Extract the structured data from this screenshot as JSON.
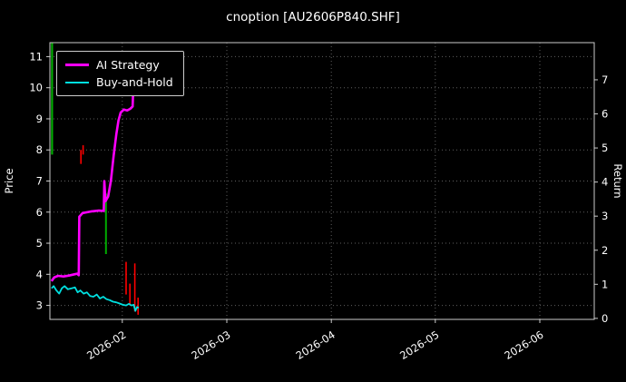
{
  "chart_data": {
    "type": "line",
    "title": "cnoption [AU2606P840.SHF]",
    "bg": "#000000",
    "text_color": "#ffffff",
    "grid_color": "#5f5f5f",
    "spine_color": "#cccccc",
    "left_axis": {
      "label": "Price",
      "ticks": [
        3,
        4,
        5,
        6,
        7,
        8,
        9,
        10,
        11
      ],
      "range": [
        2.55,
        11.45
      ]
    },
    "right_axis": {
      "label": "Return",
      "ticks": [
        0,
        1,
        2,
        3,
        4,
        5,
        6,
        7
      ],
      "range": [
        -0.03,
        8.09
      ]
    },
    "x_axis": {
      "tick_labels": [
        "2026-02",
        "2026-03",
        "2026-04",
        "2026-05",
        "2026-06"
      ],
      "tick_positions": [
        0.133,
        0.325,
        0.517,
        0.708,
        0.9
      ],
      "range": [
        0,
        1
      ]
    },
    "legend": [
      {
        "label": "AI Strategy",
        "color": "#ff00ff",
        "thickness": 3
      },
      {
        "label": "Buy-and-Hold",
        "color": "#00e0e0",
        "thickness": 2
      }
    ],
    "series": [
      {
        "name": "AI Strategy",
        "color": "#ff00ff",
        "width": 2.6,
        "points": [
          [
            0.003,
            3.78
          ],
          [
            0.008,
            3.9
          ],
          [
            0.015,
            3.95
          ],
          [
            0.025,
            3.93
          ],
          [
            0.035,
            3.96
          ],
          [
            0.045,
            4.0
          ],
          [
            0.05,
            4.02
          ],
          [
            0.053,
            3.97
          ],
          [
            0.054,
            5.85
          ],
          [
            0.06,
            5.97
          ],
          [
            0.075,
            6.02
          ],
          [
            0.09,
            6.05
          ],
          [
            0.099,
            6.04
          ],
          [
            0.1,
            7.0
          ],
          [
            0.102,
            6.35
          ],
          [
            0.107,
            6.5
          ],
          [
            0.112,
            7.0
          ],
          [
            0.117,
            7.8
          ],
          [
            0.122,
            8.5
          ],
          [
            0.126,
            8.95
          ],
          [
            0.13,
            9.2
          ],
          [
            0.136,
            9.3
          ],
          [
            0.142,
            9.27
          ],
          [
            0.148,
            9.33
          ],
          [
            0.152,
            9.4
          ],
          [
            0.153,
            9.9
          ],
          [
            0.158,
            9.93
          ],
          [
            0.162,
            10.0
          ]
        ]
      },
      {
        "name": "Buy-and-Hold",
        "color": "#00e0e0",
        "width": 1.8,
        "points": [
          [
            0.003,
            3.55
          ],
          [
            0.007,
            3.62
          ],
          [
            0.012,
            3.48
          ],
          [
            0.017,
            3.38
          ],
          [
            0.022,
            3.55
          ],
          [
            0.027,
            3.62
          ],
          [
            0.033,
            3.52
          ],
          [
            0.04,
            3.55
          ],
          [
            0.046,
            3.58
          ],
          [
            0.051,
            3.42
          ],
          [
            0.056,
            3.48
          ],
          [
            0.062,
            3.38
          ],
          [
            0.068,
            3.42
          ],
          [
            0.074,
            3.3
          ],
          [
            0.08,
            3.28
          ],
          [
            0.086,
            3.35
          ],
          [
            0.092,
            3.22
          ],
          [
            0.098,
            3.28
          ],
          [
            0.104,
            3.2
          ],
          [
            0.11,
            3.17
          ],
          [
            0.116,
            3.12
          ],
          [
            0.122,
            3.1
          ],
          [
            0.128,
            3.06
          ],
          [
            0.134,
            3.02
          ],
          [
            0.14,
            3.0
          ],
          [
            0.145,
            3.05
          ],
          [
            0.15,
            3.0
          ],
          [
            0.154,
            3.02
          ],
          [
            0.157,
            2.82
          ],
          [
            0.16,
            2.95
          ],
          [
            0.163,
            2.92
          ]
        ]
      }
    ],
    "candles": [
      {
        "x": 0.004,
        "low": 7.85,
        "high": 11.45,
        "color": "#00aa00",
        "width": 2.2
      },
      {
        "x": 0.057,
        "low": 7.55,
        "high": 8.0,
        "color": "#ff0000",
        "width": 1.6
      },
      {
        "x": 0.061,
        "low": 7.85,
        "high": 8.15,
        "color": "#ff0000",
        "width": 1.6
      },
      {
        "x": 0.103,
        "low": 4.65,
        "high": 6.6,
        "color": "#00aa00",
        "width": 2.0
      },
      {
        "x": 0.14,
        "low": 3.35,
        "high": 4.4,
        "color": "#ff0000",
        "width": 1.6
      },
      {
        "x": 0.147,
        "low": 3.0,
        "high": 3.7,
        "color": "#ff0000",
        "width": 1.6
      },
      {
        "x": 0.156,
        "low": 2.8,
        "high": 4.35,
        "color": "#ff0000",
        "width": 1.6
      },
      {
        "x": 0.162,
        "low": 2.7,
        "high": 3.25,
        "color": "#ff0000",
        "width": 1.6
      }
    ]
  }
}
